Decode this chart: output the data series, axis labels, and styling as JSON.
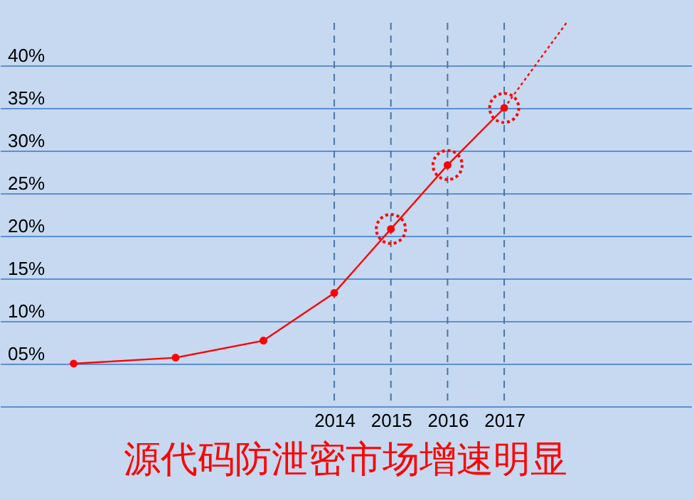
{
  "chart_data": {
    "type": "line",
    "title": "源代码防泄密市场增速明显",
    "x": [
      2009.4,
      2011.2,
      2012.75,
      2014,
      2015,
      2016,
      2017
    ],
    "series": [
      {
        "color": "#ff0000",
        "marker": "circle",
        "values": [
          5,
          5.7,
          7.7,
          13.3,
          20.8,
          28.3,
          35
        ]
      },
      {
        "type": "line",
        "color": "#ff0000",
        "marker": "none",
        "line_style": "dotted",
        "x": [
          2017,
          2018.1
        ],
        "values": [
          35,
          45
        ]
      },
      {
        "type": "scatter",
        "color": "#ff0000",
        "marker": "circle",
        "line_style": "dotted",
        "x": [
          2015,
          2016,
          2017
        ],
        "values": [
          20.8,
          28.3,
          35
        ]
      }
    ],
    "xlim": [
      2008.1,
      2020.3
    ],
    "xticks": [
      2014,
      2015,
      2016,
      2017
    ],
    "ylim": [
      0,
      45
    ],
    "yticks": [
      {
        "value": 5,
        "label": "05%"
      },
      {
        "value": 10,
        "label": "10%"
      },
      {
        "value": 15,
        "label": "15%"
      },
      {
        "value": 20,
        "label": "20%"
      },
      {
        "value": 25,
        "label": "25%"
      },
      {
        "value": 30,
        "label": "30%"
      },
      {
        "value": 35,
        "label": "35%"
      },
      {
        "value": 40,
        "label": "40%"
      }
    ],
    "grid": "y",
    "ref_lines": [
      {
        "axis": "x",
        "value": 2014,
        "color": "#4a74a8",
        "line_style": "dashed"
      },
      {
        "axis": "x",
        "value": 2015,
        "color": "#4a74a8",
        "line_style": "dashed"
      },
      {
        "axis": "x",
        "value": 2016,
        "color": "#4a74a8",
        "line_style": "dashed"
      },
      {
        "axis": "x",
        "value": 2017,
        "color": "#4a74a8",
        "line_style": "dashed"
      }
    ]
  }
}
